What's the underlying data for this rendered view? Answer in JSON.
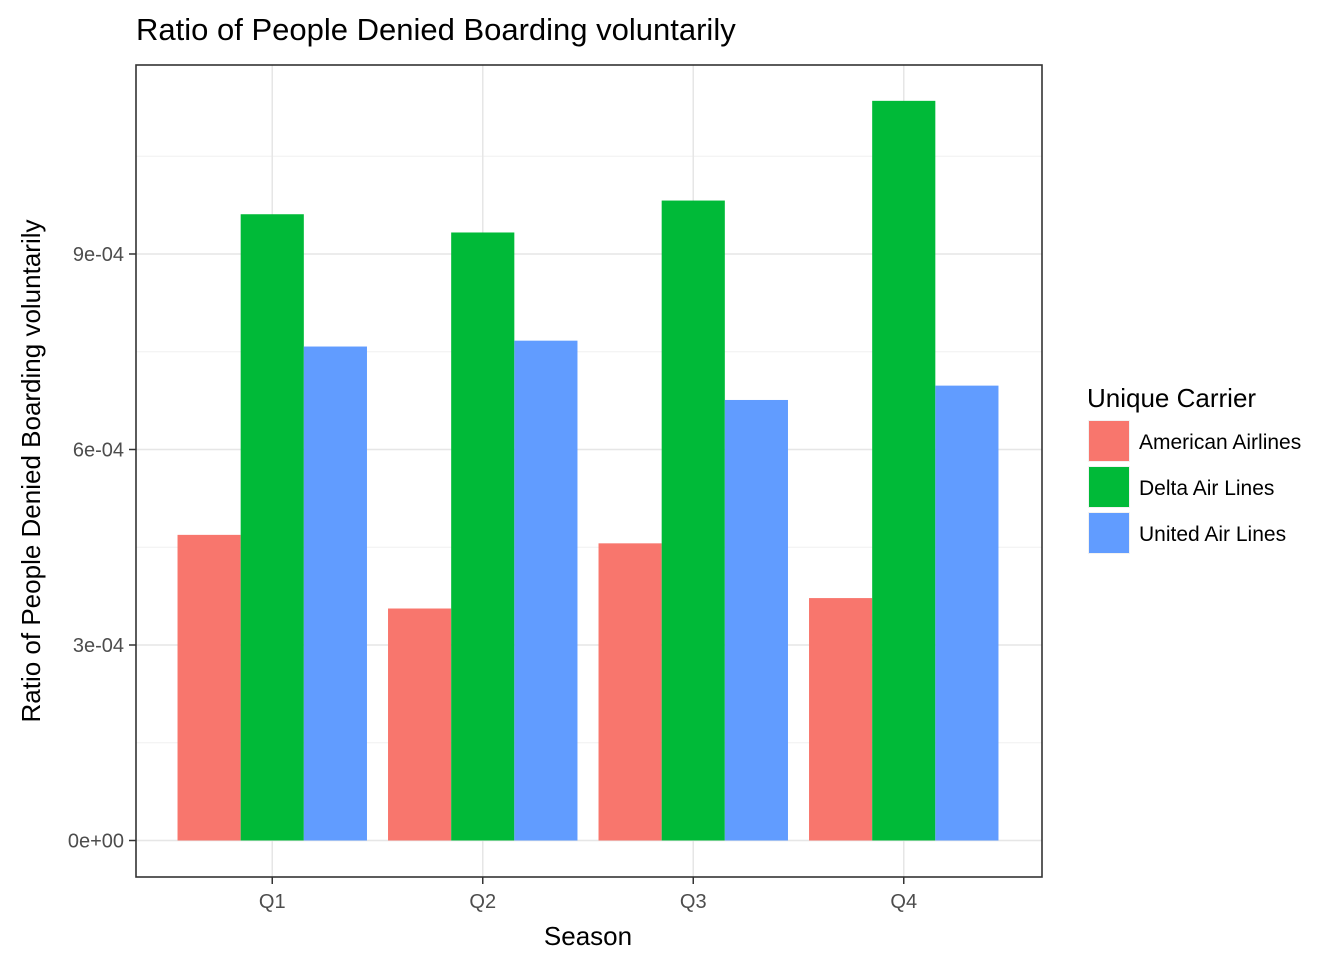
{
  "chart_data": {
    "type": "bar",
    "title": "Ratio of People Denied Boarding voluntarily",
    "xlabel": "Season",
    "ylabel": "Ratio of People Denied Boarding voluntarily",
    "categories": [
      "Q1",
      "Q2",
      "Q3",
      "Q4"
    ],
    "y_ticks": [
      "0e+00",
      "3e-04",
      "6e-04",
      "9e-04"
    ],
    "y_tick_values": [
      0,
      0.0003,
      0.0006,
      0.0009
    ],
    "ylim": [
      -5.6e-05,
      0.00119
    ],
    "grid": true,
    "legend_position": "right",
    "legend_title": "Unique Carrier",
    "series": [
      {
        "name": "American Airlines",
        "color": "#F8766D",
        "values": [
          0.000469,
          0.000356,
          0.000456,
          0.000372
        ]
      },
      {
        "name": "Delta Air Lines",
        "color": "#00BA38",
        "values": [
          0.000961,
          0.000933,
          0.000982,
          0.001135
        ]
      },
      {
        "name": "United Air Lines",
        "color": "#619CFF",
        "values": [
          0.000758,
          0.000767,
          0.000676,
          0.000698
        ]
      }
    ]
  }
}
